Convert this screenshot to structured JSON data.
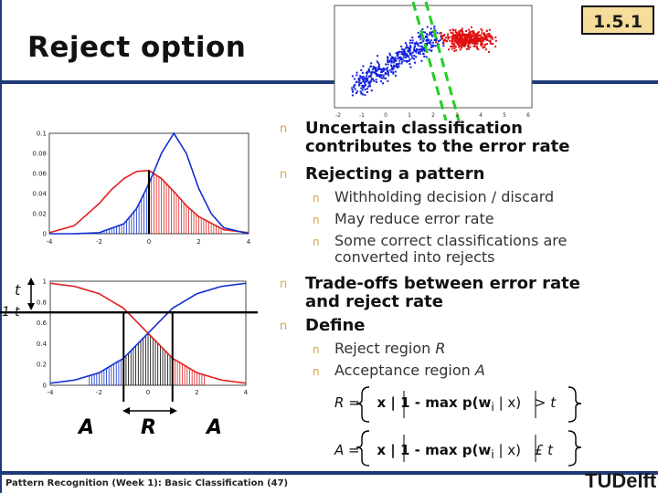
{
  "slide": {
    "title": "Reject option",
    "section_number": "1.5.1",
    "footer": "Pattern Recognition (Week 1): Basic Classification (47)",
    "logo_text": "TUDelft"
  },
  "bullets": [
    {
      "text_1": "Uncertain classification",
      "text_2": "contributes to the error rate"
    },
    {
      "text_1": "Rejecting a pattern"
    },
    {
      "text_1": "Trade-offs between error rate",
      "text_2": "and reject rate"
    },
    {
      "text_1": "Define"
    }
  ],
  "subbullets_reject": [
    {
      "text": "Withholding decision / discard"
    },
    {
      "text": "May reduce error rate"
    },
    {
      "text_1": "Some correct classifications are",
      "text_2": "converted into rejects"
    }
  ],
  "subbullets_define": [
    {
      "text": "Reject region ",
      "var": "R"
    },
    {
      "text": "Acceptance region ",
      "var": "A"
    }
  ],
  "bullet_marker": "n",
  "formulas": {
    "reject": {
      "lhs": "R = ",
      "body": "x | 1 - max p(w",
      "sub": "i",
      "tail": " | x) ",
      "op": "> t"
    },
    "accept": {
      "lhs": "A = ",
      "body": "x | 1 - max p(w",
      "sub": "i",
      "tail": " | x) ",
      "op": "£ t"
    }
  },
  "diagram_labels": {
    "t": "t",
    "one_minus_t": "1-t",
    "region_A_left": "A",
    "region_R": "R",
    "region_A_right": "A"
  },
  "chart_data": [
    {
      "type": "line",
      "series": [
        {
          "name": "",
          "x": [
            -4,
            -3,
            -2,
            -1.5,
            -1,
            -0.5,
            0,
            0.5,
            1,
            1.5,
            2,
            3,
            4
          ],
          "y": [
            0.001,
            0.008,
            0.03,
            0.044,
            0.055,
            0.062,
            0.063,
            0.055,
            0.042,
            0.028,
            0.017,
            0.004,
            0.001
          ]
        },
        {
          "name": "",
          "x": [
            -4,
            -3,
            -2,
            -1,
            -0.5,
            0,
            0.5,
            1,
            1.5,
            2,
            2.5,
            3,
            4
          ],
          "y": [
            0,
            0,
            0.001,
            0.01,
            0.025,
            0.05,
            0.08,
            0.1,
            0.08,
            0.045,
            0.02,
            0.006,
            0
          ]
        }
      ],
      "xticks": [
        "-4",
        "-2",
        "0",
        "2",
        "4"
      ],
      "yticks": [
        "0",
        "0.02",
        "0.04",
        "0.06",
        "0.08",
        "0.1"
      ],
      "xlim": [
        -4,
        4
      ],
      "ylim": [
        0,
        0.1
      ],
      "colors": {
        "red": "#e02020",
        "blue": "#1030d0"
      }
    },
    {
      "type": "line",
      "series": [
        {
          "name": "",
          "x": [
            -4,
            -3,
            -2,
            -1,
            0,
            1,
            2,
            3,
            4
          ],
          "y": [
            0.98,
            0.95,
            0.88,
            0.74,
            0.5,
            0.26,
            0.12,
            0.05,
            0.02
          ]
        },
        {
          "name": "",
          "x": [
            -4,
            -3,
            -2,
            -1,
            0,
            1,
            2,
            3,
            4
          ],
          "y": [
            0.02,
            0.05,
            0.12,
            0.26,
            0.5,
            0.74,
            0.88,
            0.95,
            0.98
          ]
        }
      ],
      "thresholds": {
        "one_minus_t": 0.7,
        "reject_low": -1,
        "reject_high": 1
      },
      "xticks": [
        "-4",
        "-2",
        "0",
        "2",
        "4"
      ],
      "yticks": [
        "0",
        "0.2",
        "0.4",
        "0.6",
        "0.8",
        "1"
      ],
      "xlim": [
        -4,
        4
      ],
      "ylim": [
        0,
        1
      ],
      "colors": {
        "red": "#e02020",
        "blue": "#1030d0"
      }
    },
    {
      "type": "scatter",
      "series": [
        {
          "name": "",
          "color": "#1020e0"
        },
        {
          "name": "",
          "color": "#e01010"
        }
      ],
      "xticks": [
        "-2",
        "-1",
        "0",
        "1",
        "2",
        "3",
        "4",
        "5",
        "6"
      ]
    }
  ]
}
